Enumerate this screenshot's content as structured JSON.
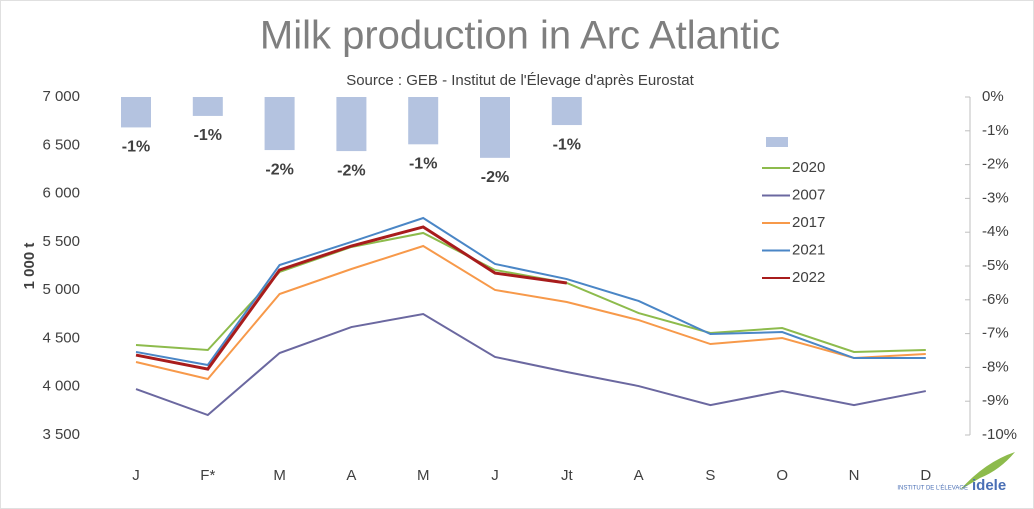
{
  "chart_data": {
    "type": "line",
    "title": "Milk production in Arc Atlantic",
    "subtitle": "Source : GEB - Institut de l'Élevage d'après Eurostat",
    "y_label": "1 000 t",
    "logo": [
      "INSTITUT DE L'ÉLEVAGE",
      "idele"
    ],
    "categories": [
      "J",
      "F*",
      "M",
      "A",
      "M",
      "J",
      "Jt",
      "A",
      "S",
      "O",
      "N",
      "D"
    ],
    "ylim": [
      3500,
      7000
    ],
    "yticks": [
      {
        "value": 3500,
        "label": "3 500"
      },
      {
        "value": 4000,
        "label": "4 000"
      },
      {
        "value": 4500,
        "label": "4 500"
      },
      {
        "value": 5000,
        "label": "5 000"
      },
      {
        "value": 5500,
        "label": "5 500"
      },
      {
        "value": 6000,
        "label": "6 000"
      },
      {
        "value": 6500,
        "label": "6 500"
      },
      {
        "value": 7000,
        "label": "7 000"
      }
    ],
    "y2lim": [
      -10,
      0
    ],
    "y2ticks": [
      {
        "value": 0,
        "label": "0%"
      },
      {
        "value": -1,
        "label": "-1%"
      },
      {
        "value": -2,
        "label": "-2%"
      },
      {
        "value": -3,
        "label": "-3%"
      },
      {
        "value": -4,
        "label": "-4%"
      },
      {
        "value": -5,
        "label": "-5%"
      },
      {
        "value": -6,
        "label": "-6%"
      },
      {
        "value": -7,
        "label": "-7%"
      },
      {
        "value": -8,
        "label": "-8%"
      },
      {
        "value": -9,
        "label": "-9%"
      },
      {
        "value": -10,
        "label": "-10%"
      }
    ],
    "bars": {
      "type": "bar",
      "axis": "y2",
      "color": "#b4c3e0",
      "values": [
        -0.9,
        -0.56,
        -1.57,
        -1.6,
        -1.4,
        -1.8,
        -0.83
      ],
      "value_labels": [
        "-1%",
        "-1%",
        "-2%",
        "-2%",
        "-1%",
        "-2%",
        "-1%"
      ]
    },
    "series": [
      {
        "name": "2020",
        "color": "#8dbb4c",
        "values": [
          4432,
          4380,
          5188,
          5447,
          5592,
          5209,
          5074,
          4763,
          4556,
          4608,
          4360,
          4380
        ]
      },
      {
        "name": "2007",
        "color": "#6b68a0",
        "values": [
          3976,
          3707,
          4349,
          4618,
          4753,
          4308,
          4152,
          4007,
          3810,
          3955,
          3810,
          3955
        ]
      },
      {
        "name": "2017",
        "color": "#f7994a",
        "values": [
          4256,
          4080,
          4960,
          5219,
          5457,
          5002,
          4877,
          4690,
          4442,
          4504,
          4297,
          4339
        ]
      },
      {
        "name": "2021",
        "color": "#4a86c6",
        "values": [
          4360,
          4225,
          5260,
          5499,
          5747,
          5271,
          5115,
          4888,
          4546,
          4566,
          4297,
          4297
        ]
      },
      {
        "name": "2022",
        "color": "#a81c1c",
        "values": [
          4328,
          4183,
          5209,
          5457,
          5654,
          5177,
          5074,
          null,
          null,
          null,
          null,
          null
        ]
      }
    ]
  }
}
